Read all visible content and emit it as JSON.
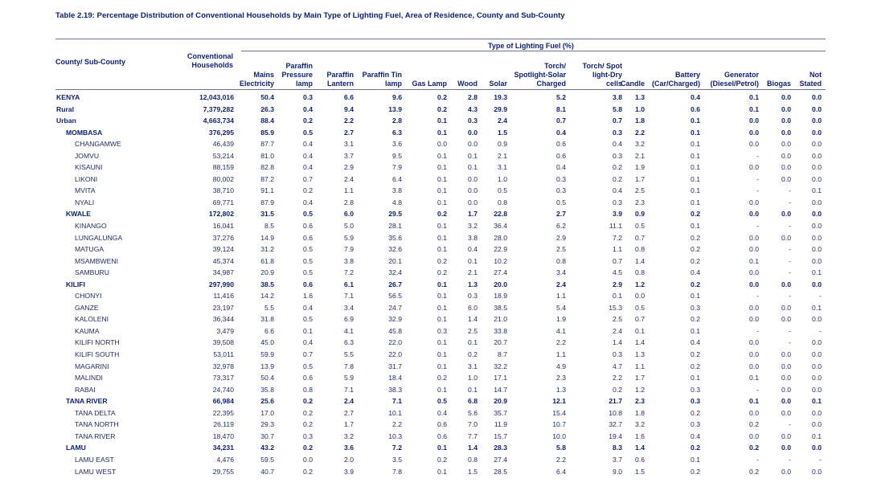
{
  "title": "Table 2.19: Percentage Distribution of Conventional Households by Main Type of Lighting Fuel, Area of Residence, County and Sub-County",
  "header": {
    "group_label": "Type of Lighting Fuel (%)",
    "county_label": "County/ Sub-County",
    "households_label": [
      "Conventional",
      "Households"
    ],
    "columns": [
      {
        "id": "mains",
        "lines": [
          "Mains",
          "Electricity"
        ]
      },
      {
        "id": "ppl",
        "lines": [
          "Paraffin",
          "Pressure",
          "lamp"
        ]
      },
      {
        "id": "pl",
        "lines": [
          "Paraffin",
          "Lantern"
        ]
      },
      {
        "id": "ptl",
        "lines": [
          "Paraffin Tin",
          "lamp"
        ]
      },
      {
        "id": "gas",
        "lines": [
          "Gas Lamp"
        ]
      },
      {
        "id": "wood",
        "lines": [
          "Wood"
        ]
      },
      {
        "id": "solar",
        "lines": [
          "Solar"
        ]
      },
      {
        "id": "torch1",
        "lines": [
          "Torch/",
          "Spotlight-Solar",
          "Charged"
        ]
      },
      {
        "id": "torch2",
        "lines": [
          "Torch/ Spot",
          "light-Dry",
          "cells"
        ]
      },
      {
        "id": "candle",
        "lines": [
          "Candle"
        ]
      },
      {
        "id": "battery",
        "lines": [
          "Battery",
          "(Car/Charged)"
        ]
      },
      {
        "id": "generator",
        "lines": [
          "Generator",
          "(Diesel/Petrol)"
        ]
      },
      {
        "id": "biogas",
        "lines": [
          "Biogas"
        ]
      },
      {
        "id": "notstated",
        "lines": [
          "Not",
          "Stated"
        ]
      }
    ]
  },
  "rows": [
    {
      "name": "KENYA",
      "level": 0,
      "bold": true,
      "hh": "12,043,016",
      "v": [
        "50.4",
        "0.3",
        "6.6",
        "9.6",
        "0.2",
        "2.8",
        "19.3",
        "5.2",
        "3.8",
        "1.3",
        "0.4",
        "0.1",
        "0.0",
        "0.0"
      ]
    },
    {
      "name": "Rural",
      "level": 0,
      "bold": true,
      "hh": "7,379,282",
      "v": [
        "26.3",
        "0.4",
        "9.4",
        "13.9",
        "0.2",
        "4.3",
        "29.9",
        "8.1",
        "5.8",
        "1.0",
        "0.6",
        "0.1",
        "0.0",
        "0.0"
      ]
    },
    {
      "name": "Urban",
      "level": 0,
      "bold": true,
      "hh": "4,663,734",
      "v": [
        "88.4",
        "0.2",
        "2.2",
        "2.8",
        "0.1",
        "0.3",
        "2.4",
        "0.7",
        "0.7",
        "1.8",
        "0.1",
        "0.0",
        "0.0",
        "0.0"
      ]
    },
    {
      "name": "MOMBASA",
      "level": 1,
      "bold": true,
      "hh": "376,295",
      "v": [
        "85.9",
        "0.5",
        "2.7",
        "6.3",
        "0.1",
        "0.0",
        "1.5",
        "0.4",
        "0.3",
        "2.2",
        "0.1",
        "0.0",
        "0.0",
        "0.0"
      ]
    },
    {
      "name": "CHANGAMWE",
      "level": 2,
      "bold": false,
      "hh": "46,439",
      "v": [
        "87.7",
        "0.4",
        "3.1",
        "3.6",
        "0.0",
        "0.0",
        "0.9",
        "0.6",
        "0.4",
        "3.2",
        "0.1",
        "0.0",
        "0.0",
        "0.0"
      ]
    },
    {
      "name": "JOMVU",
      "level": 2,
      "bold": false,
      "hh": "53,214",
      "v": [
        "81.0",
        "0.4",
        "3.7",
        "9.5",
        "0.1",
        "0.1",
        "2.1",
        "0.6",
        "0.3",
        "2.1",
        "0.1",
        "-",
        "0.0",
        "0.0"
      ]
    },
    {
      "name": "KISAUNI",
      "level": 2,
      "bold": false,
      "hh": "88,159",
      "v": [
        "82.8",
        "0.4",
        "2.9",
        "7.9",
        "0.1",
        "0.1",
        "3.1",
        "0.4",
        "0.2",
        "1.9",
        "0.1",
        "0.0",
        "0.0",
        "0.0"
      ]
    },
    {
      "name": "LIKONI",
      "level": 2,
      "bold": false,
      "hh": "80,002",
      "v": [
        "87.2",
        "0.7",
        "2.4",
        "6.4",
        "0.1",
        "0.0",
        "1.0",
        "0.3",
        "0.2",
        "1.7",
        "0.1",
        "-",
        "0.0",
        "0.0"
      ]
    },
    {
      "name": "MVITA",
      "level": 2,
      "bold": false,
      "hh": "38,710",
      "v": [
        "91.1",
        "0.2",
        "1.1",
        "3.8",
        "0.1",
        "0.0",
        "0.5",
        "0.3",
        "0.4",
        "2.5",
        "0.1",
        "-",
        "-",
        "0.1"
      ]
    },
    {
      "name": "NYALI",
      "level": 2,
      "bold": false,
      "hh": "69,771",
      "v": [
        "87.9",
        "0.4",
        "2.8",
        "4.8",
        "0.1",
        "0.0",
        "0.8",
        "0.5",
        "0.3",
        "2.3",
        "0.1",
        "0.0",
        "-",
        "0.0"
      ]
    },
    {
      "name": "KWALE",
      "level": 1,
      "bold": true,
      "hh": "172,802",
      "v": [
        "31.5",
        "0.5",
        "6.0",
        "29.5",
        "0.2",
        "1.7",
        "22.8",
        "2.7",
        "3.9",
        "0.9",
        "0.2",
        "0.0",
        "0.0",
        "0.0"
      ]
    },
    {
      "name": "KINANGO",
      "level": 2,
      "bold": false,
      "hh": "16,041",
      "v": [
        "8.5",
        "0.6",
        "5.0",
        "28.1",
        "0.1",
        "3.2",
        "36.4",
        "6.2",
        "11.1",
        "0.5",
        "0.1",
        "-",
        "-",
        "0.0"
      ]
    },
    {
      "name": "LUNGALUNGA",
      "level": 2,
      "bold": false,
      "hh": "37,276",
      "v": [
        "14.9",
        "0.6",
        "5.9",
        "35.6",
        "0.1",
        "3.8",
        "28.0",
        "2.9",
        "7.2",
        "0.7",
        "0.2",
        "0.0",
        "0.0",
        "0.0"
      ]
    },
    {
      "name": "MATUGA",
      "level": 2,
      "bold": false,
      "hh": "39,124",
      "v": [
        "31.2",
        "0.5",
        "7.9",
        "32.6",
        "0.1",
        "0.4",
        "22.9",
        "2.5",
        "1.1",
        "0.8",
        "0.2",
        "0.0",
        "-",
        "0.0"
      ]
    },
    {
      "name": "MSAMBWENI",
      "level": 2,
      "bold": false,
      "hh": "45,374",
      "v": [
        "61.8",
        "0.5",
        "3.8",
        "20.1",
        "0.2",
        "0.1",
        "10.2",
        "0.8",
        "0.7",
        "1.4",
        "0.2",
        "0.1",
        "-",
        "0.0"
      ]
    },
    {
      "name": "SAMBURU",
      "level": 2,
      "bold": false,
      "hh": "34,987",
      "v": [
        "20.9",
        "0.5",
        "7.2",
        "32.4",
        "0.2",
        "2.1",
        "27.4",
        "3.4",
        "4.5",
        "0.8",
        "0.4",
        "0.0",
        "-",
        "0.1"
      ]
    },
    {
      "name": "KILIFI",
      "level": 1,
      "bold": true,
      "hh": "297,990",
      "v": [
        "38.5",
        "0.6",
        "6.1",
        "26.7",
        "0.1",
        "1.3",
        "20.0",
        "2.4",
        "2.9",
        "1.2",
        "0.2",
        "0.0",
        "0.0",
        "0.0"
      ]
    },
    {
      "name": "CHONYI",
      "level": 2,
      "bold": false,
      "hh": "11,416",
      "v": [
        "14.2",
        "1.6",
        "7.1",
        "56.5",
        "0.1",
        "0.3",
        "18.9",
        "1.1",
        "0.1",
        "0.0",
        "0.1",
        "-",
        "-",
        "-"
      ]
    },
    {
      "name": "GANZE",
      "level": 2,
      "bold": false,
      "hh": "23,197",
      "v": [
        "5.5",
        "0.4",
        "3.4",
        "24.7",
        "0.1",
        "6.0",
        "38.5",
        "5.4",
        "15.3",
        "0.5",
        "0.3",
        "0.0",
        "0.0",
        "0.1"
      ]
    },
    {
      "name": "KALOLENI",
      "level": 2,
      "bold": false,
      "hh": "36,344",
      "v": [
        "31.8",
        "0.5",
        "6.9",
        "32.9",
        "0.1",
        "1.4",
        "21.0",
        "1.9",
        "2.5",
        "0.7",
        "0.2",
        "0.0",
        "0.0",
        "0.0"
      ]
    },
    {
      "name": "KAUMA",
      "level": 2,
      "bold": false,
      "hh": "3,479",
      "v": [
        "6.6",
        "0.1",
        "4.1",
        "45.8",
        "0.3",
        "2.5",
        "33.8",
        "4.1",
        "2.4",
        "0.1",
        "0.1",
        "-",
        "-",
        "-"
      ]
    },
    {
      "name": "KILIFI NORTH",
      "level": 2,
      "bold": false,
      "hh": "39,508",
      "v": [
        "45.0",
        "0.4",
        "6.3",
        "22.0",
        "0.1",
        "0.1",
        "20.7",
        "2.2",
        "1.4",
        "1.4",
        "0.4",
        "0.0",
        "-",
        "0.0"
      ]
    },
    {
      "name": "KILIFI SOUTH",
      "level": 2,
      "bold": false,
      "hh": "53,011",
      "v": [
        "59.9",
        "0.7",
        "5.5",
        "22.0",
        "0.1",
        "0.2",
        "8.7",
        "1.1",
        "0.3",
        "1.3",
        "0.2",
        "0.0",
        "0.0",
        "0.0"
      ]
    },
    {
      "name": "MAGARINI",
      "level": 2,
      "bold": false,
      "hh": "32,978",
      "v": [
        "13.9",
        "0.5",
        "7.8",
        "31.7",
        "0.1",
        "3.1",
        "32.2",
        "4.9",
        "4.7",
        "1.1",
        "0.2",
        "0.0",
        "0.0",
        "0.0"
      ]
    },
    {
      "name": "MALINDI",
      "level": 2,
      "bold": false,
      "hh": "73,317",
      "v": [
        "50.4",
        "0.6",
        "5.9",
        "18.4",
        "0.2",
        "1.0",
        "17.1",
        "2.3",
        "2.2",
        "1.7",
        "0.1",
        "0.1",
        "0.0",
        "0.0"
      ]
    },
    {
      "name": "RABAI",
      "level": 2,
      "bold": false,
      "hh": "24,740",
      "v": [
        "35.8",
        "0.8",
        "7.1",
        "38.3",
        "0.1",
        "0.1",
        "14.7",
        "1.3",
        "0.2",
        "1.2",
        "0.3",
        "-",
        "0.0",
        "0.0"
      ]
    },
    {
      "name": "TANA RIVER",
      "level": 1,
      "bold": true,
      "hh": "66,984",
      "v": [
        "25.6",
        "0.2",
        "2.4",
        "7.1",
        "0.5",
        "6.8",
        "20.9",
        "12.1",
        "21.7",
        "2.3",
        "0.3",
        "0.1",
        "0.0",
        "0.1"
      ]
    },
    {
      "name": "TANA DELTA",
      "level": 2,
      "bold": false,
      "hh": "22,395",
      "v": [
        "17.0",
        "0.2",
        "2.7",
        "10.1",
        "0.4",
        "5.6",
        "35.7",
        "15.4",
        "10.8",
        "1.8",
        "0.2",
        "0.0",
        "0.0",
        "0.0"
      ]
    },
    {
      "name": "TANA NORTH",
      "level": 2,
      "bold": false,
      "hh": "26,119",
      "v": [
        "29.3",
        "0.2",
        "1.7",
        "2.2",
        "0.6",
        "7.0",
        "11.9",
        "10.7",
        "32.7",
        "3.2",
        "0.3",
        "0.2",
        "-",
        "0.0"
      ]
    },
    {
      "name": "TANA RIVER",
      "level": 2,
      "bold": false,
      "hh": "18,470",
      "v": [
        "30.7",
        "0.3",
        "3.2",
        "10.3",
        "0.6",
        "7.7",
        "15.7",
        "10.0",
        "19.4",
        "1.6",
        "0.4",
        "0.0",
        "0.0",
        "0.1"
      ]
    },
    {
      "name": "LAMU",
      "level": 1,
      "bold": true,
      "hh": "34,231",
      "v": [
        "43.2",
        "0.2",
        "3.6",
        "7.2",
        "0.1",
        "1.4",
        "28.3",
        "5.8",
        "8.3",
        "1.4",
        "0.2",
        "0.2",
        "0.0",
        "0.0"
      ]
    },
    {
      "name": "LAMU EAST",
      "level": 2,
      "bold": false,
      "hh": "4,476",
      "v": [
        "59.5",
        "0.0",
        "2.0",
        "3.5",
        "0.2",
        "0.8",
        "27.4",
        "2.2",
        "3.7",
        "0.6",
        "0.1",
        "-",
        "-",
        "-"
      ]
    },
    {
      "name": "LAMU WEST",
      "level": 2,
      "bold": false,
      "hh": "29,755",
      "v": [
        "40.7",
        "0.2",
        "3.9",
        "7.8",
        "0.1",
        "1.5",
        "28.5",
        "6.4",
        "9.0",
        "1.5",
        "0.2",
        "0.2",
        "0.0",
        "0.0"
      ]
    }
  ]
}
